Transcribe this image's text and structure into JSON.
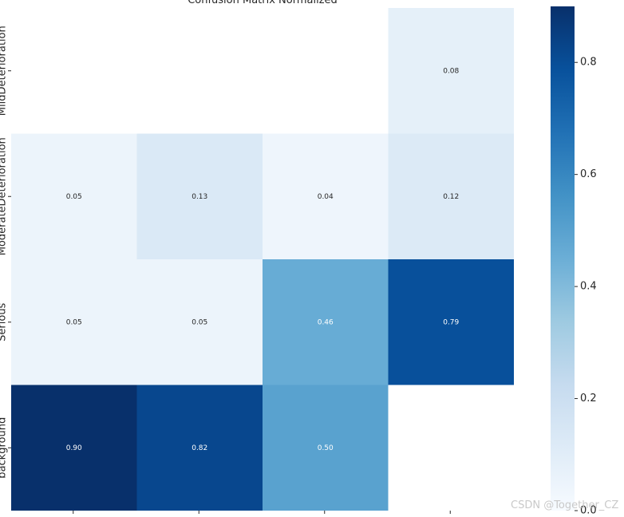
{
  "chart_data": {
    "type": "heatmap",
    "title": "Confusion Matrix Normalized",
    "row_labels": [
      "MildDeterioration",
      "ModerateDeterioration",
      "Serious",
      "background"
    ],
    "col_count": 4,
    "values": [
      [
        null,
        null,
        null,
        0.08
      ],
      [
        0.05,
        0.13,
        0.04,
        0.12
      ],
      [
        0.05,
        0.05,
        0.46,
        0.79
      ],
      [
        0.9,
        0.82,
        0.5,
        null
      ]
    ],
    "cell_text": [
      [
        "",
        "",
        "",
        "0.08"
      ],
      [
        "0.05",
        "0.13",
        "0.04",
        "0.12"
      ],
      [
        "0.05",
        "0.05",
        "0.46",
        "0.79"
      ],
      [
        "0.90",
        "0.82",
        "0.50",
        ""
      ]
    ],
    "colormap": "Blues",
    "vmin": 0.0,
    "vmax": 0.9,
    "colorbar_ticks": [
      0.0,
      0.2,
      0.4,
      0.6,
      0.8
    ],
    "colorbar_tick_labels": [
      "0.0",
      "0.2",
      "0.4",
      "0.6",
      "0.8"
    ]
  },
  "watermark": "CSDN @Together_CZ",
  "colors": {
    "light_text": "#ffffff",
    "dark_text": "#262626"
  }
}
